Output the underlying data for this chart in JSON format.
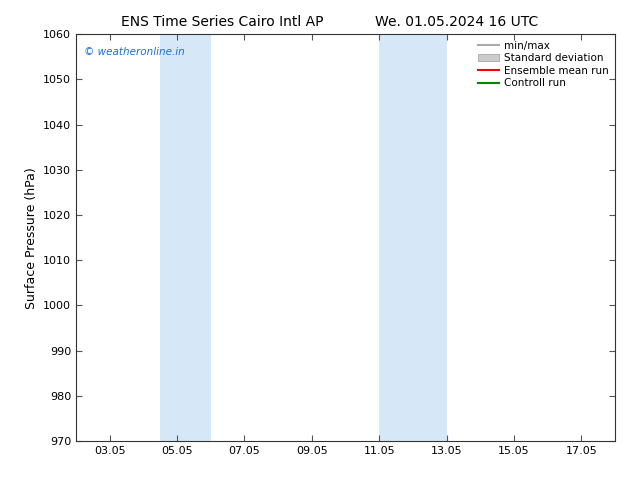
{
  "title_left": "ENS Time Series Cairo Intl AP",
  "title_right": "We. 01.05.2024 16 UTC",
  "ylabel": "Surface Pressure (hPa)",
  "ylim": [
    970,
    1060
  ],
  "yticks": [
    970,
    980,
    990,
    1000,
    1010,
    1020,
    1030,
    1040,
    1050,
    1060
  ],
  "xlim": [
    2.0,
    18.0
  ],
  "xtick_labels": [
    "03.05",
    "05.05",
    "07.05",
    "09.05",
    "11.05",
    "13.05",
    "15.05",
    "17.05"
  ],
  "xtick_positions": [
    3,
    5,
    7,
    9,
    11,
    13,
    15,
    17
  ],
  "shaded_bands": [
    {
      "x_start": 4.5,
      "x_end": 6.0
    },
    {
      "x_start": 11.0,
      "x_end": 13.0
    }
  ],
  "shaded_color": "#d6e8f7",
  "watermark_text": "© weatheronline.in",
  "watermark_color": "#1a6fd4",
  "legend_entries": [
    {
      "label": "min/max",
      "color": "#aaaaaa",
      "lw": 1.5,
      "style": "solid",
      "type": "line"
    },
    {
      "label": "Standard deviation",
      "color": "#cccccc",
      "lw": 8,
      "style": "solid",
      "type": "patch"
    },
    {
      "label": "Ensemble mean run",
      "color": "#ff0000",
      "lw": 1.5,
      "style": "solid",
      "type": "line"
    },
    {
      "label": "Controll run",
      "color": "#008800",
      "lw": 1.5,
      "style": "solid",
      "type": "line"
    }
  ],
  "bg_color": "#ffffff",
  "font_color": "#000000",
  "title_fontsize": 10,
  "axis_label_fontsize": 9,
  "tick_fontsize": 8,
  "legend_fontsize": 7.5
}
